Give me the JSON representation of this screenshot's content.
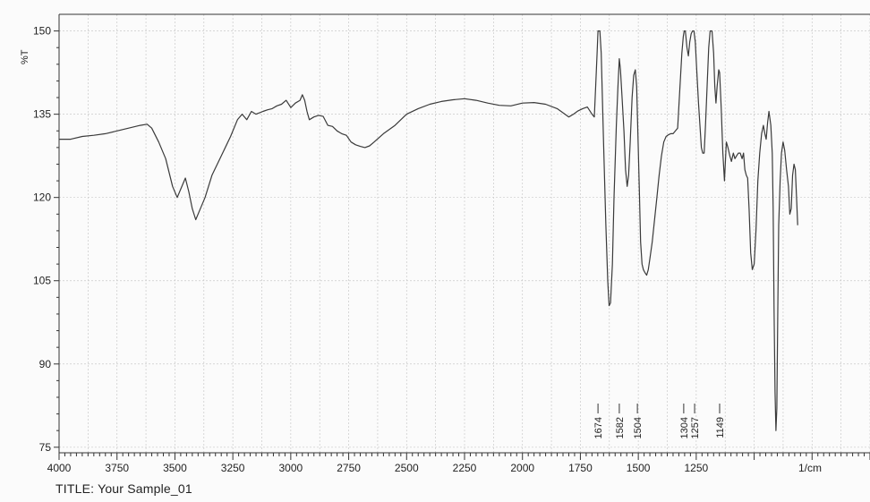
{
  "chart_data": {
    "type": "line",
    "title": "",
    "caption_prefix": "TITLE:",
    "caption_value": "Your Sample_01",
    "xlabel": "1/cm",
    "ylabel": "%T",
    "xlim": [
      4000,
      500
    ],
    "ylim": [
      74,
      153
    ],
    "x_ticks": [
      4000,
      3750,
      3500,
      3250,
      3000,
      2750,
      2500,
      2250,
      2000,
      1750,
      1500,
      1250
    ],
    "y_ticks": [
      75,
      90,
      105,
      120,
      135,
      150
    ],
    "grid": true,
    "series": [
      {
        "points": [
          [
            4000,
            130.5
          ],
          [
            3950,
            130.5
          ],
          [
            3900,
            131
          ],
          [
            3850,
            131.2
          ],
          [
            3800,
            131.5
          ],
          [
            3750,
            132
          ],
          [
            3700,
            132.5
          ],
          [
            3650,
            133
          ],
          [
            3620,
            133.2
          ],
          [
            3600,
            132.5
          ],
          [
            3570,
            130
          ],
          [
            3540,
            127
          ],
          [
            3510,
            122
          ],
          [
            3490,
            120
          ],
          [
            3475,
            121.5
          ],
          [
            3455,
            123.5
          ],
          [
            3440,
            121
          ],
          [
            3425,
            118
          ],
          [
            3410,
            116
          ],
          [
            3395,
            117.5
          ],
          [
            3370,
            120
          ],
          [
            3340,
            124
          ],
          [
            3300,
            127.5
          ],
          [
            3260,
            131
          ],
          [
            3230,
            134
          ],
          [
            3210,
            135
          ],
          [
            3190,
            134
          ],
          [
            3170,
            135.5
          ],
          [
            3150,
            135
          ],
          [
            3120,
            135.5
          ],
          [
            3100,
            135.8
          ],
          [
            3080,
            136
          ],
          [
            3060,
            136.5
          ],
          [
            3040,
            136.8
          ],
          [
            3020,
            137.5
          ],
          [
            3000,
            136.2
          ],
          [
            2980,
            137
          ],
          [
            2960,
            137.5
          ],
          [
            2950,
            138.5
          ],
          [
            2940,
            137.5
          ],
          [
            2930,
            135.5
          ],
          [
            2920,
            134
          ],
          [
            2900,
            134.5
          ],
          [
            2880,
            134.8
          ],
          [
            2860,
            134.6
          ],
          [
            2840,
            133
          ],
          [
            2820,
            132.8
          ],
          [
            2800,
            132
          ],
          [
            2780,
            131.5
          ],
          [
            2760,
            131.2
          ],
          [
            2740,
            130
          ],
          [
            2720,
            129.5
          ],
          [
            2700,
            129.2
          ],
          [
            2680,
            129
          ],
          [
            2660,
            129.3
          ],
          [
            2640,
            130
          ],
          [
            2600,
            131.5
          ],
          [
            2550,
            133
          ],
          [
            2500,
            135
          ],
          [
            2450,
            136
          ],
          [
            2400,
            136.8
          ],
          [
            2350,
            137.3
          ],
          [
            2300,
            137.6
          ],
          [
            2250,
            137.8
          ],
          [
            2200,
            137.5
          ],
          [
            2150,
            137
          ],
          [
            2100,
            136.6
          ],
          [
            2050,
            136.5
          ],
          [
            2000,
            137
          ],
          [
            1950,
            137.1
          ],
          [
            1900,
            136.8
          ],
          [
            1850,
            136
          ],
          [
            1800,
            134.5
          ],
          [
            1780,
            135
          ],
          [
            1760,
            135.6
          ],
          [
            1740,
            136
          ],
          [
            1720,
            136.3
          ],
          [
            1700,
            135
          ],
          [
            1690,
            134.5
          ],
          [
            1684,
            140
          ],
          [
            1678,
            146
          ],
          [
            1674,
            150
          ],
          [
            1666,
            150
          ],
          [
            1660,
            146
          ],
          [
            1650,
            130
          ],
          [
            1640,
            115
          ],
          [
            1632,
            105
          ],
          [
            1626,
            100.5
          ],
          [
            1620,
            101
          ],
          [
            1612,
            108
          ],
          [
            1605,
            120
          ],
          [
            1595,
            133
          ],
          [
            1588,
            140
          ],
          [
            1582,
            145
          ],
          [
            1577,
            143
          ],
          [
            1570,
            138
          ],
          [
            1562,
            132
          ],
          [
            1555,
            125
          ],
          [
            1548,
            122
          ],
          [
            1542,
            124
          ],
          [
            1535,
            130
          ],
          [
            1527,
            138
          ],
          [
            1520,
            142
          ],
          [
            1513,
            143
          ],
          [
            1507,
            140
          ],
          [
            1502,
            132
          ],
          [
            1496,
            122
          ],
          [
            1490,
            112
          ],
          [
            1484,
            108
          ],
          [
            1478,
            107
          ],
          [
            1472,
            106.5
          ],
          [
            1464,
            106
          ],
          [
            1457,
            107
          ],
          [
            1450,
            109
          ],
          [
            1440,
            112
          ],
          [
            1430,
            116
          ],
          [
            1420,
            120
          ],
          [
            1410,
            124
          ],
          [
            1400,
            127.5
          ],
          [
            1390,
            130
          ],
          [
            1380,
            131
          ],
          [
            1370,
            131.3
          ],
          [
            1360,
            131.5
          ],
          [
            1350,
            131.5
          ],
          [
            1340,
            132
          ],
          [
            1330,
            132.5
          ],
          [
            1320,
            140
          ],
          [
            1312,
            146
          ],
          [
            1306,
            149
          ],
          [
            1302,
            150
          ],
          [
            1297,
            150
          ],
          [
            1290,
            147
          ],
          [
            1284,
            145.5
          ],
          [
            1278,
            148
          ],
          [
            1272,
            149.5
          ],
          [
            1266,
            150
          ],
          [
            1260,
            150
          ],
          [
            1254,
            148
          ],
          [
            1248,
            143
          ],
          [
            1240,
            137
          ],
          [
            1234,
            133
          ],
          [
            1228,
            129
          ],
          [
            1222,
            128
          ],
          [
            1216,
            128
          ],
          [
            1210,
            133
          ],
          [
            1203,
            140
          ],
          [
            1196,
            147
          ],
          [
            1190,
            150
          ],
          [
            1182,
            150
          ],
          [
            1175,
            146
          ],
          [
            1170,
            140
          ],
          [
            1165,
            137
          ],
          [
            1160,
            140
          ],
          [
            1153,
            143
          ],
          [
            1149,
            142.5
          ],
          [
            1142,
            136
          ],
          [
            1135,
            128
          ],
          [
            1128,
            123
          ],
          [
            1120,
            130
          ],
          [
            1113,
            129
          ],
          [
            1105,
            127.5
          ],
          [
            1098,
            126.5
          ],
          [
            1090,
            128
          ],
          [
            1083,
            127
          ],
          [
            1076,
            127.5
          ],
          [
            1068,
            128
          ],
          [
            1060,
            128
          ],
          [
            1052,
            127
          ],
          [
            1046,
            128
          ],
          [
            1040,
            125
          ],
          [
            1034,
            124
          ],
          [
            1028,
            123.5
          ],
          [
            1022,
            118
          ],
          [
            1015,
            110
          ],
          [
            1008,
            107
          ],
          [
            1000,
            108
          ],
          [
            992,
            114
          ],
          [
            984,
            123
          ],
          [
            976,
            128
          ],
          [
            968,
            131.5
          ],
          [
            960,
            133
          ],
          [
            954,
            131.5
          ],
          [
            948,
            130.5
          ],
          [
            942,
            133.5
          ],
          [
            936,
            135.5
          ],
          [
            928,
            133
          ],
          [
            922,
            128
          ],
          [
            918,
            118
          ],
          [
            914,
            100
          ],
          [
            910,
            85
          ],
          [
            906,
            78
          ],
          [
            902,
            82
          ],
          [
            898,
            100
          ],
          [
            894,
            115
          ],
          [
            888,
            123
          ],
          [
            882,
            128
          ],
          [
            875,
            130
          ],
          [
            868,
            128.5
          ],
          [
            860,
            125
          ],
          [
            852,
            122
          ],
          [
            846,
            117
          ],
          [
            840,
            118
          ],
          [
            834,
            124
          ],
          [
            828,
            126
          ],
          [
            822,
            125
          ],
          [
            816,
            119
          ],
          [
            812,
            115
          ]
        ]
      }
    ],
    "peak_labels": [
      "1674",
      "1582",
      "1504",
      "1304",
      "1257",
      "1149"
    ]
  }
}
